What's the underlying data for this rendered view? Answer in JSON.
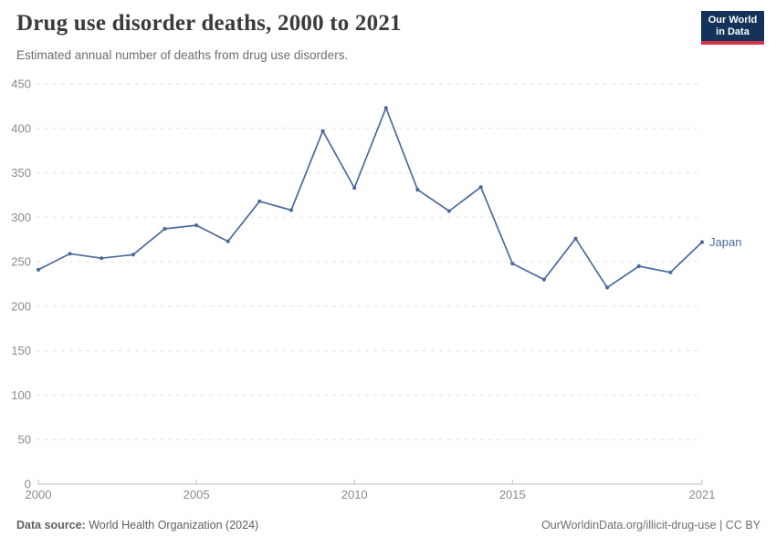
{
  "header": {
    "title": "Drug use disorder deaths, 2000 to 2021",
    "subtitle": "Estimated annual number of deaths from drug use disorders.",
    "logo": {
      "line1": "Our World",
      "line2": "in Data",
      "bg_color": "#13335a",
      "accent_color": "#d2354a"
    }
  },
  "chart_data": {
    "type": "line",
    "title": "Drug use disorder deaths, 2000 to 2021",
    "subtitle": "Estimated annual number of deaths from drug use disorders.",
    "xlabel": "",
    "ylabel": "",
    "xlim": [
      2000,
      2021
    ],
    "ylim": [
      0,
      450
    ],
    "grid": "horizontal-dashed",
    "legend_position": "end-of-line-label",
    "x_tick_labels": [
      2000,
      2005,
      2010,
      2015,
      2021
    ],
    "y_tick_step": 50,
    "y_tick_labels": [
      0,
      50,
      100,
      150,
      200,
      250,
      300,
      350,
      400,
      450
    ],
    "categories": [
      2000,
      2001,
      2002,
      2003,
      2004,
      2005,
      2006,
      2007,
      2008,
      2009,
      2010,
      2011,
      2012,
      2013,
      2014,
      2015,
      2016,
      2017,
      2018,
      2019,
      2020,
      2021
    ],
    "series": [
      {
        "name": "Japan",
        "color": "#4c6a9c",
        "values": [
          241,
          259,
          254,
          258,
          287,
          291,
          273,
          318,
          308,
          397,
          333,
          423,
          331,
          307,
          334,
          248,
          230,
          276,
          221,
          245,
          238,
          272
        ]
      }
    ]
  },
  "footer": {
    "source_label": "Data source:",
    "source_text": "World Health Organization (2024)",
    "link_text": "OurWorldinData.org/illicit-drug-use",
    "separator": "|",
    "license": "CC BY"
  },
  "colors": {
    "series_blue": "#4c6a9c",
    "gridline": "#e2e2e2",
    "axis": "#c0c0c0",
    "tick_label": "#8a8a8a",
    "title_text": "#3b3b3b",
    "subtitle_text": "#6e6e6e"
  }
}
